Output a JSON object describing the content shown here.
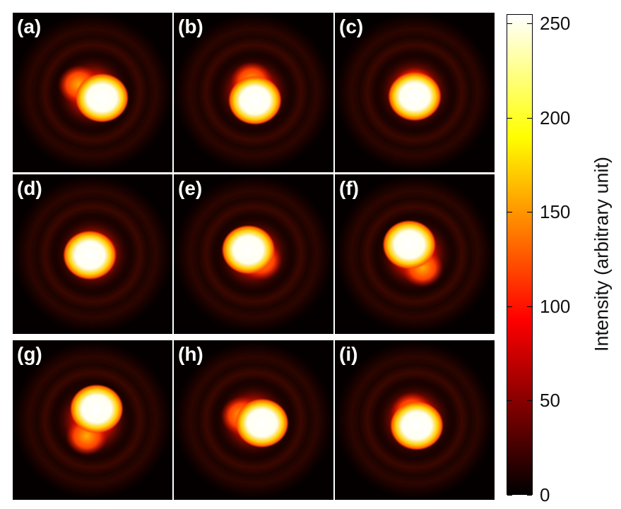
{
  "panels": [
    {
      "label": "(a)",
      "angle": 150,
      "sep": 22
    },
    {
      "label": "(b)",
      "angle": 100,
      "sep": 16
    },
    {
      "label": "(c)",
      "angle": 90,
      "sep": 8
    },
    {
      "label": "(d)",
      "angle": 20,
      "sep": 6
    },
    {
      "label": "(e)",
      "angle": -40,
      "sep": 14
    },
    {
      "label": "(f)",
      "angle": -60,
      "sep": 22
    },
    {
      "label": "(g)",
      "angle": -110,
      "sep": 24
    },
    {
      "label": "(h)",
      "angle": 160,
      "sep": 18
    },
    {
      "label": "(i)",
      "angle": 110,
      "sep": 12
    }
  ],
  "colorbar": {
    "title": "Intensity (arbitrary unit)",
    "colormap": "hot",
    "min": 0,
    "max": 255,
    "ticks": [
      "0",
      "50",
      "100",
      "150",
      "200",
      "250"
    ]
  }
}
